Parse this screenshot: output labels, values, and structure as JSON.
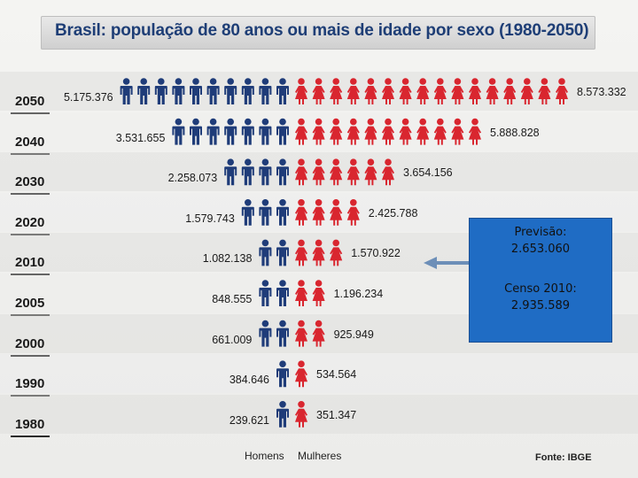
{
  "chart_data": {
    "type": "pictograph",
    "title": "Brasil: população de 80 anos ou mais de idade por sexo (1980-2050)",
    "source": "Fonte: IBGE",
    "legend": [
      "Homens",
      "Mulheres"
    ],
    "series_names": [
      "Homens",
      "Mulheres"
    ],
    "colors": {
      "men": "#1f3c79",
      "women": "#d9262f"
    },
    "rows": [
      {
        "year": "2050",
        "men": 5175376,
        "women": 8573332,
        "men_label": "5.175.376",
        "women_label": "8.573.332",
        "men_icons": 10,
        "women_icons": 16
      },
      {
        "year": "2040",
        "men": 3531655,
        "women": 5888828,
        "men_label": "3.531.655",
        "women_label": "5.888.828",
        "men_icons": 7,
        "women_icons": 11
      },
      {
        "year": "2030",
        "men": 2258073,
        "women": 3654156,
        "men_label": "2.258.073",
        "women_label": "3.654.156",
        "men_icons": 4,
        "women_icons": 6
      },
      {
        "year": "2020",
        "men": 1579743,
        "women": 2425788,
        "men_label": "1.579.743",
        "women_label": "2.425.788",
        "men_icons": 3,
        "women_icons": 4
      },
      {
        "year": "2010",
        "men": 1082138,
        "women": 1570922,
        "men_label": "1.082.138",
        "women_label": "1.570.922",
        "men_icons": 2,
        "women_icons": 3
      },
      {
        "year": "2005",
        "men": 848555,
        "women": 1196234,
        "men_label": "848.555",
        "women_label": "1.196.234",
        "men_icons": 2,
        "women_icons": 2
      },
      {
        "year": "2000",
        "men": 661009,
        "women": 925949,
        "men_label": "661.009",
        "women_label": "925.949",
        "men_icons": 2,
        "women_icons": 2
      },
      {
        "year": "1990",
        "men": 384646,
        "women": 534564,
        "men_label": "384.646",
        "women_label": "534.564",
        "men_icons": 1,
        "women_icons": 1
      },
      {
        "year": "1980",
        "men": 239621,
        "women": 351347,
        "men_label": "239.621",
        "women_label": "351.347",
        "men_icons": 1,
        "women_icons": 1
      }
    ]
  },
  "callout": {
    "forecast_label": "Previsão:",
    "forecast_value": "2.653.060",
    "census_label": "Censo 2010:",
    "census_value": "2.935.589"
  }
}
